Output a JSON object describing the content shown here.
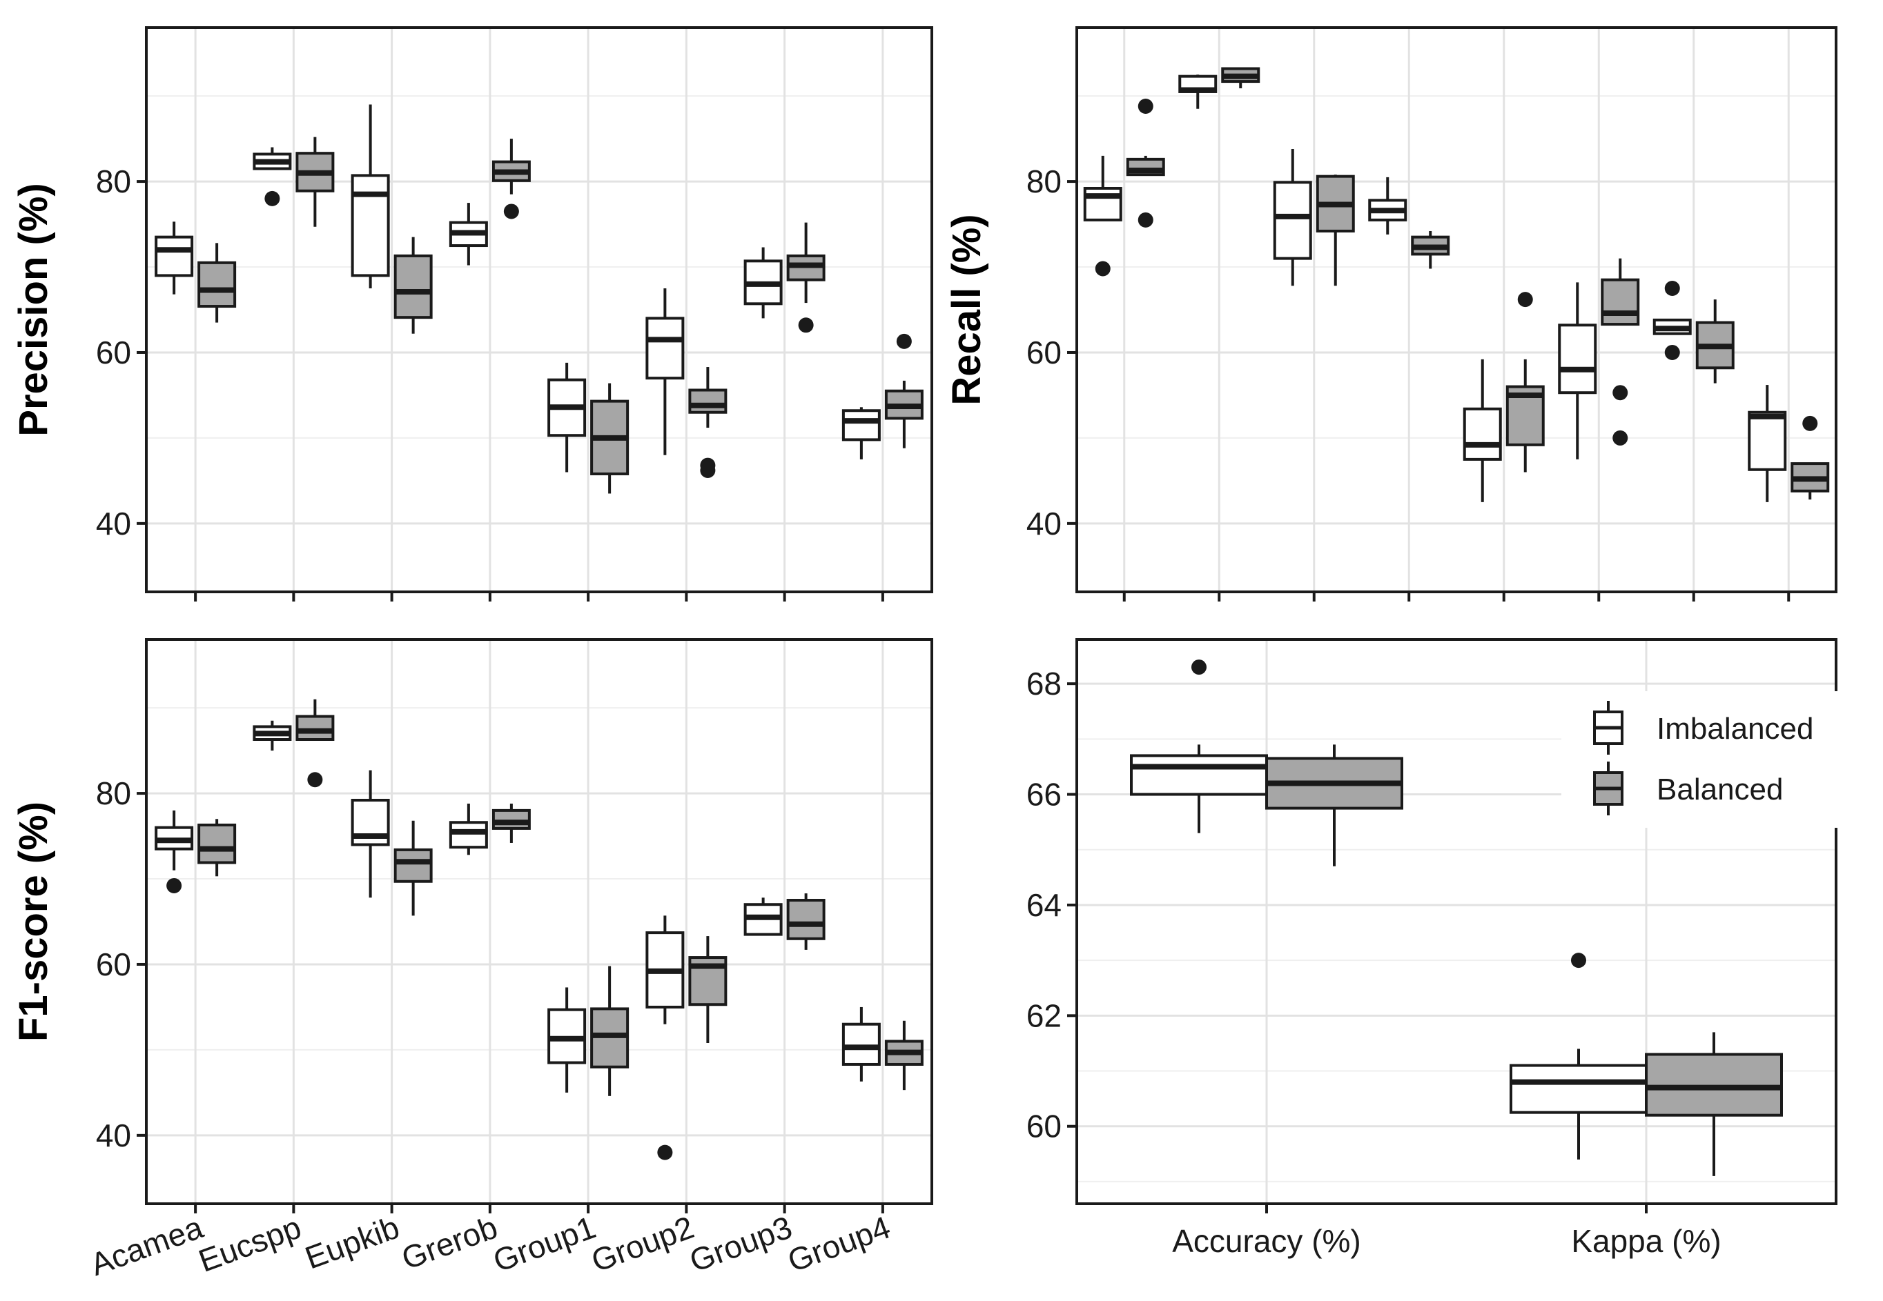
{
  "colors": {
    "imbalanced": "#ffffff",
    "balanced": "#a6a6a6",
    "stroke": "#1a1a1a",
    "grid": "#e2e2e2"
  },
  "legend": {
    "items": [
      {
        "label": "Imbalanced",
        "key": "imbalanced"
      },
      {
        "label": "Balanced",
        "key": "balanced"
      }
    ]
  },
  "chart_data": [
    {
      "type": "box",
      "id": "precision",
      "ylabel": "Precision (%)",
      "ylim": [
        32,
        98
      ],
      "yticks": [
        40,
        60,
        80
      ],
      "categories": [
        "Acamea",
        "Eucspp",
        "Eupkib",
        "Grerob",
        "Group1",
        "Group2",
        "Group3",
        "Group4"
      ],
      "show_x_labels": false,
      "series": [
        {
          "name": "Imbalanced",
          "boxes": [
            {
              "whislo": 66.8,
              "q1": 69,
              "med": 72,
              "q3": 73.5,
              "whishi": 75.3,
              "fliers": []
            },
            {
              "whislo": 81.5,
              "q1": 81.5,
              "med": 82.3,
              "q3": 83.2,
              "whishi": 84,
              "fliers": [
                78
              ]
            },
            {
              "whislo": 67.5,
              "q1": 69,
              "med": 78.5,
              "q3": 80.7,
              "whishi": 89,
              "fliers": []
            },
            {
              "whislo": 70.2,
              "q1": 72.5,
              "med": 74,
              "q3": 75.2,
              "whishi": 77.5,
              "fliers": []
            },
            {
              "whislo": 46,
              "q1": 50.3,
              "med": 53.6,
              "q3": 56.8,
              "whishi": 58.8,
              "fliers": []
            },
            {
              "whislo": 48,
              "q1": 57,
              "med": 61.5,
              "q3": 64,
              "whishi": 67.5,
              "fliers": []
            },
            {
              "whislo": 64,
              "q1": 65.7,
              "med": 68,
              "q3": 70.7,
              "whishi": 72.3,
              "fliers": []
            },
            {
              "whislo": 47.5,
              "q1": 49.8,
              "med": 52,
              "q3": 53.2,
              "whishi": 53.6,
              "fliers": []
            }
          ]
        },
        {
          "name": "Balanced",
          "boxes": [
            {
              "whislo": 63.5,
              "q1": 65.4,
              "med": 67.3,
              "q3": 70.5,
              "whishi": 72.8,
              "fliers": []
            },
            {
              "whislo": 74.7,
              "q1": 78.9,
              "med": 81,
              "q3": 83.3,
              "whishi": 85.2,
              "fliers": []
            },
            {
              "whislo": 62.2,
              "q1": 64.1,
              "med": 67.1,
              "q3": 71.3,
              "whishi": 73.5,
              "fliers": []
            },
            {
              "whislo": 78.5,
              "q1": 80.1,
              "med": 81.1,
              "q3": 82.3,
              "whishi": 85,
              "fliers": [
                76.5
              ]
            },
            {
              "whislo": 43.5,
              "q1": 45.8,
              "med": 50,
              "q3": 54.3,
              "whishi": 56.4,
              "fliers": []
            },
            {
              "whislo": 51.2,
              "q1": 53,
              "med": 53.8,
              "q3": 55.6,
              "whishi": 58.3,
              "fliers": [
                46.8,
                46.2
              ]
            },
            {
              "whislo": 65.8,
              "q1": 68.5,
              "med": 70.2,
              "q3": 71.3,
              "whishi": 75.2,
              "fliers": [
                63.2
              ]
            },
            {
              "whislo": 48.8,
              "q1": 52.3,
              "med": 53.7,
              "q3": 55.5,
              "whishi": 56.7,
              "fliers": [
                61.3
              ]
            }
          ]
        }
      ]
    },
    {
      "type": "box",
      "id": "recall",
      "ylabel": "Recall  (%)",
      "ylim": [
        32,
        98
      ],
      "yticks": [
        40,
        60,
        80
      ],
      "categories": [
        "Acamea",
        "Eucspp",
        "Eupkib",
        "Grerob",
        "Group1",
        "Group2",
        "Group3",
        "Group4"
      ],
      "show_x_labels": false,
      "series": [
        {
          "name": "Imbalanced",
          "boxes": [
            {
              "whislo": 75.5,
              "q1": 75.5,
              "med": 78.3,
              "q3": 79.2,
              "whishi": 83,
              "fliers": [
                69.8
              ]
            },
            {
              "whislo": 88.5,
              "q1": 90.5,
              "med": 90.7,
              "q3": 92.3,
              "whishi": 92.5,
              "fliers": []
            },
            {
              "whislo": 67.8,
              "q1": 71,
              "med": 75.9,
              "q3": 79.9,
              "whishi": 83.8,
              "fliers": []
            },
            {
              "whislo": 73.8,
              "q1": 75.5,
              "med": 76.6,
              "q3": 77.8,
              "whishi": 80.5,
              "fliers": []
            },
            {
              "whislo": 42.5,
              "q1": 47.5,
              "med": 49.2,
              "q3": 53.4,
              "whishi": 59.2,
              "fliers": []
            },
            {
              "whislo": 47.5,
              "q1": 55.3,
              "med": 58,
              "q3": 63.2,
              "whishi": 68.2,
              "fliers": []
            },
            {
              "whislo": 62.2,
              "q1": 62.2,
              "med": 62.8,
              "q3": 63.8,
              "whishi": 63.8,
              "fliers": [
                67.5,
                60
              ]
            },
            {
              "whislo": 42.5,
              "q1": 46.3,
              "med": 52.5,
              "q3": 53,
              "whishi": 56.2,
              "fliers": []
            }
          ]
        },
        {
          "name": "Balanced",
          "boxes": [
            {
              "whislo": 80.8,
              "q1": 80.8,
              "med": 81.3,
              "q3": 82.6,
              "whishi": 83,
              "fliers": [
                88.8,
                75.5
              ]
            },
            {
              "whislo": 90.9,
              "q1": 91.7,
              "med": 92.3,
              "q3": 93.2,
              "whishi": 93.2,
              "fliers": []
            },
            {
              "whislo": 67.8,
              "q1": 74.2,
              "med": 77.3,
              "q3": 80.6,
              "whishi": 80.8,
              "fliers": []
            },
            {
              "whislo": 69.8,
              "q1": 71.5,
              "med": 72.3,
              "q3": 73.5,
              "whishi": 74.2,
              "fliers": []
            },
            {
              "whislo": 46,
              "q1": 49.2,
              "med": 55,
              "q3": 56,
              "whishi": 59.2,
              "fliers": [
                66.2
              ]
            },
            {
              "whislo": 63.3,
              "q1": 63.3,
              "med": 64.6,
              "q3": 68.5,
              "whishi": 71,
              "fliers": [
                55.3,
                50
              ]
            },
            {
              "whislo": 56.4,
              "q1": 58.2,
              "med": 60.7,
              "q3": 63.5,
              "whishi": 66.2,
              "fliers": []
            },
            {
              "whislo": 42.8,
              "q1": 43.8,
              "med": 45.2,
              "q3": 47,
              "whishi": 47,
              "fliers": [
                51.7
              ]
            }
          ]
        }
      ]
    },
    {
      "type": "box",
      "id": "f1",
      "ylabel": "F1-score (%)",
      "ylim": [
        32,
        98
      ],
      "yticks": [
        40,
        60,
        80
      ],
      "categories": [
        "Acamea",
        "Eucspp",
        "Eupkib",
        "Grerob",
        "Group1",
        "Group2",
        "Group3",
        "Group4"
      ],
      "show_x_labels": true,
      "series": [
        {
          "name": "Imbalanced",
          "boxes": [
            {
              "whislo": 71,
              "q1": 73.5,
              "med": 74.5,
              "q3": 76,
              "whishi": 78,
              "fliers": [
                69.2
              ]
            },
            {
              "whislo": 85,
              "q1": 86.3,
              "med": 87,
              "q3": 87.8,
              "whishi": 88.5,
              "fliers": []
            },
            {
              "whislo": 67.8,
              "q1": 74,
              "med": 75,
              "q3": 79.2,
              "whishi": 82.7,
              "fliers": []
            },
            {
              "whislo": 72.8,
              "q1": 73.7,
              "med": 75.5,
              "q3": 76.6,
              "whishi": 78.8,
              "fliers": []
            },
            {
              "whislo": 45,
              "q1": 48.5,
              "med": 51.3,
              "q3": 54.7,
              "whishi": 57.3,
              "fliers": []
            },
            {
              "whislo": 53,
              "q1": 55,
              "med": 59.2,
              "q3": 63.7,
              "whishi": 65.7,
              "fliers": [
                38
              ]
            },
            {
              "whislo": 63.5,
              "q1": 63.5,
              "med": 65.5,
              "q3": 67,
              "whishi": 67.8,
              "fliers": []
            },
            {
              "whislo": 46.3,
              "q1": 48.3,
              "med": 50.3,
              "q3": 53,
              "whishi": 55,
              "fliers": []
            }
          ]
        },
        {
          "name": "Balanced",
          "boxes": [
            {
              "whislo": 70.3,
              "q1": 71.9,
              "med": 73.5,
              "q3": 76.3,
              "whishi": 77,
              "fliers": []
            },
            {
              "whislo": 86.3,
              "q1": 86.3,
              "med": 87.3,
              "q3": 89,
              "whishi": 91,
              "fliers": [
                81.6
              ]
            },
            {
              "whislo": 65.7,
              "q1": 69.7,
              "med": 72,
              "q3": 73.4,
              "whishi": 76.8,
              "fliers": []
            },
            {
              "whislo": 74.2,
              "q1": 75.9,
              "med": 76.6,
              "q3": 78,
              "whishi": 78.8,
              "fliers": []
            },
            {
              "whislo": 44.6,
              "q1": 48,
              "med": 51.7,
              "q3": 54.8,
              "whishi": 59.8,
              "fliers": []
            },
            {
              "whislo": 50.8,
              "q1": 55.3,
              "med": 59.8,
              "q3": 60.8,
              "whishi": 63.3,
              "fliers": []
            },
            {
              "whislo": 61.7,
              "q1": 63,
              "med": 64.7,
              "q3": 67.5,
              "whishi": 68.3,
              "fliers": []
            },
            {
              "whislo": 45.3,
              "q1": 48.3,
              "med": 49.7,
              "q3": 51,
              "whishi": 53.4,
              "fliers": []
            }
          ]
        }
      ]
    },
    {
      "type": "box",
      "id": "overall",
      "ylabel": "",
      "ylim": [
        58.6,
        68.8
      ],
      "yticks": [
        60,
        62,
        64,
        66,
        68
      ],
      "categories": [
        "Accuracy (%)",
        "Kappa (%)"
      ],
      "show_x_labels": true,
      "series": [
        {
          "name": "Imbalanced",
          "boxes": [
            {
              "whislo": 65.3,
              "q1": 66,
              "med": 66.5,
              "q3": 66.7,
              "whishi": 66.9,
              "fliers": [
                68.3
              ]
            },
            {
              "whislo": 59.4,
              "q1": 60.25,
              "med": 60.8,
              "q3": 61.1,
              "whishi": 61.4,
              "fliers": [
                63
              ]
            }
          ]
        },
        {
          "name": "Balanced",
          "boxes": [
            {
              "whislo": 64.7,
              "q1": 65.75,
              "med": 66.2,
              "q3": 66.65,
              "whishi": 66.9,
              "fliers": []
            },
            {
              "whislo": 59.1,
              "q1": 60.2,
              "med": 60.7,
              "q3": 61.3,
              "whishi": 61.7,
              "fliers": []
            }
          ]
        }
      ]
    }
  ]
}
